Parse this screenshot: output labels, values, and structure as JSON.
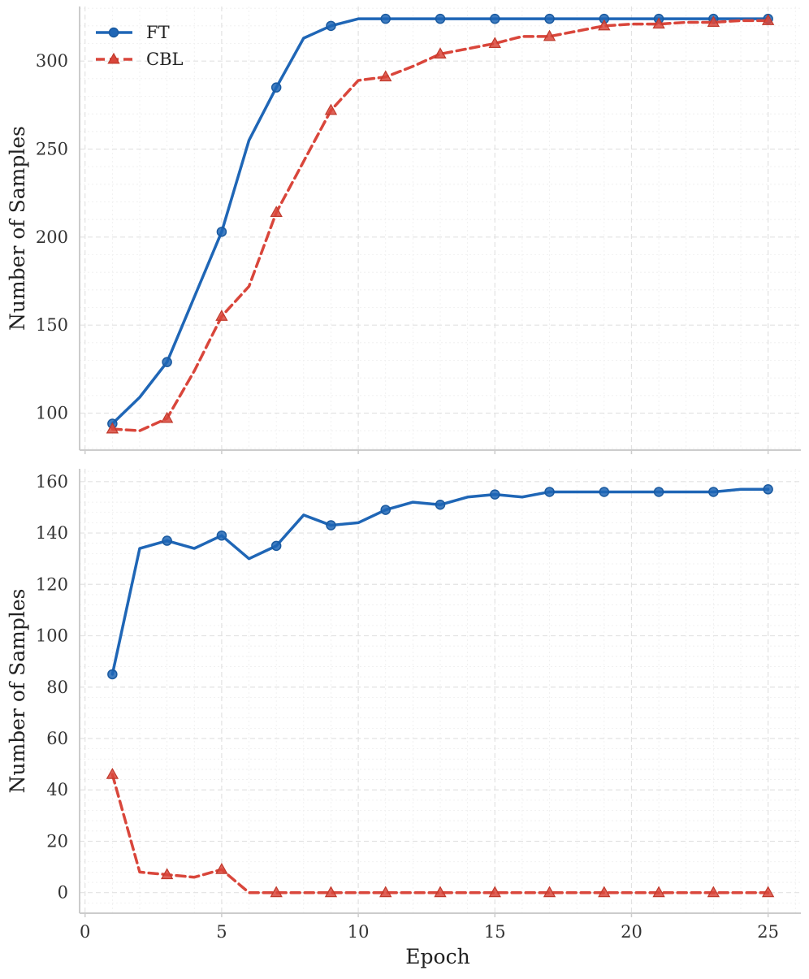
{
  "chart_data": [
    {
      "type": "line",
      "title": "",
      "xlabel": "",
      "ylabel": "Number of Samples",
      "xlim": [
        -0.2,
        26.2
      ],
      "ylim": [
        79,
        331
      ],
      "xticks": [
        0,
        5,
        10,
        15,
        20,
        25
      ],
      "show_x_tick_labels": false,
      "yticks": [
        100,
        150,
        200,
        250,
        300
      ],
      "grid": true,
      "legend": "top-left",
      "x": [
        1,
        2,
        3,
        4,
        5,
        6,
        7,
        8,
        9,
        10,
        11,
        12,
        13,
        14,
        15,
        16,
        17,
        18,
        19,
        20,
        21,
        22,
        23,
        24,
        25
      ],
      "marker_x": [
        1,
        3,
        5,
        7,
        9,
        11,
        13,
        15,
        17,
        19,
        21,
        23,
        25
      ],
      "series": [
        {
          "name": "FT",
          "color": "#1f66b6",
          "marker": "circle",
          "dash": "solid",
          "values": [
            94,
            109,
            129,
            166,
            203,
            255,
            285,
            313,
            320,
            324,
            324,
            324,
            324,
            324,
            324,
            324,
            324,
            324,
            324,
            324,
            324,
            324,
            324,
            324,
            324
          ]
        },
        {
          "name": "CBL",
          "color": "#d9463b",
          "marker": "triangle",
          "dash": "dashed",
          "values": [
            91,
            90,
            97,
            124,
            155,
            172,
            214,
            243,
            272,
            289,
            291,
            297,
            304,
            307,
            310,
            314,
            314,
            317,
            320,
            321,
            321,
            322,
            322,
            323,
            323
          ]
        }
      ]
    },
    {
      "type": "line",
      "title": "",
      "xlabel": "Epoch",
      "ylabel": "Number of Samples",
      "xlim": [
        -0.2,
        26.2
      ],
      "ylim": [
        -8,
        165
      ],
      "xticks": [
        0,
        5,
        10,
        15,
        20,
        25
      ],
      "show_x_tick_labels": true,
      "yticks": [
        0,
        20,
        40,
        60,
        80,
        100,
        120,
        140,
        160
      ],
      "grid": true,
      "legend": "none",
      "x": [
        1,
        2,
        3,
        4,
        5,
        6,
        7,
        8,
        9,
        10,
        11,
        12,
        13,
        14,
        15,
        16,
        17,
        18,
        19,
        20,
        21,
        22,
        23,
        24,
        25
      ],
      "marker_x": [
        1,
        3,
        5,
        7,
        9,
        11,
        13,
        15,
        17,
        19,
        21,
        23,
        25
      ],
      "series": [
        {
          "name": "FT",
          "color": "#1f66b6",
          "marker": "circle",
          "dash": "solid",
          "values": [
            85,
            134,
            137,
            134,
            139,
            130,
            135,
            147,
            143,
            144,
            149,
            152,
            151,
            154,
            155,
            154,
            156,
            156,
            156,
            156,
            156,
            156,
            156,
            157,
            157
          ]
        },
        {
          "name": "CBL",
          "color": "#d9463b",
          "marker": "triangle",
          "dash": "dashed",
          "values": [
            46,
            8,
            7,
            6,
            9,
            0,
            0,
            0,
            0,
            0,
            0,
            0,
            0,
            0,
            0,
            0,
            0,
            0,
            0,
            0,
            0,
            0,
            0,
            0,
            0
          ]
        }
      ]
    }
  ]
}
